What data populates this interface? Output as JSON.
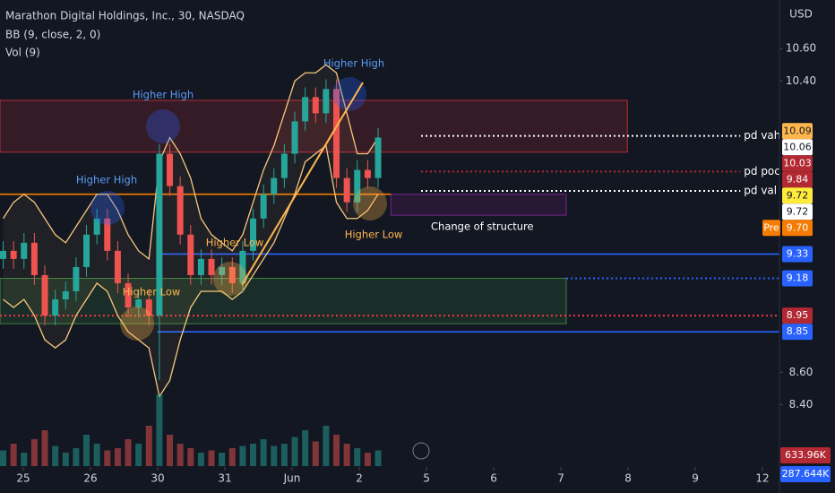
{
  "chart_data": {
    "type": "candlestick",
    "title": "Marathon Digital Holdings, Inc., 30, NASDAQ",
    "indicators": [
      "BB (9, close, 2, 0)",
      "Vol (9)"
    ],
    "currency": "USD",
    "x": [
      -0.3,
      -0.145,
      0.01,
      0.165,
      0.32,
      0.475,
      0.63,
      0.785,
      0.94,
      1.095,
      1.25,
      1.405,
      1.56,
      1.715,
      1.87,
      2.025,
      2.18,
      2.335,
      2.49,
      2.645,
      2.8,
      2.955,
      3.11,
      3.265,
      3.42,
      3.575,
      3.73,
      3.885,
      4.04,
      4.195,
      4.35,
      4.505,
      4.66,
      4.815,
      4.97,
      5.125,
      5.28
    ],
    "open": [
      9.3,
      9.35,
      9.3,
      9.4,
      9.2,
      8.95,
      9.05,
      9.1,
      9.25,
      9.45,
      9.55,
      9.35,
      9.15,
      9.0,
      9.05,
      8.95,
      9.95,
      9.75,
      9.45,
      9.2,
      9.3,
      9.2,
      9.25,
      9.15,
      9.35,
      9.55,
      9.7,
      9.8,
      9.95,
      10.15,
      10.3,
      10.2,
      10.35,
      9.8,
      9.65,
      9.85,
      9.8
    ],
    "high": [
      9.41,
      9.41,
      9.46,
      9.46,
      9.26,
      9.11,
      9.16,
      9.31,
      9.51,
      9.61,
      9.61,
      9.41,
      9.21,
      9.11,
      9.11,
      10.01,
      10.01,
      9.81,
      9.51,
      9.36,
      9.36,
      9.31,
      9.31,
      9.41,
      9.61,
      9.76,
      9.86,
      10.01,
      10.21,
      10.36,
      10.36,
      10.41,
      10.41,
      9.86,
      9.91,
      9.91,
      10.11
    ],
    "low": [
      9.24,
      9.24,
      9.24,
      9.14,
      8.89,
      8.89,
      8.99,
      9.04,
      9.19,
      9.39,
      9.29,
      9.09,
      8.94,
      8.94,
      8.89,
      8.55,
      9.69,
      9.39,
      9.14,
      9.14,
      9.14,
      9.14,
      9.09,
      9.09,
      9.29,
      9.49,
      9.64,
      9.74,
      9.89,
      10.09,
      10.14,
      10.14,
      9.74,
      9.59,
      9.59,
      9.74,
      9.74
    ],
    "close": [
      9.35,
      9.3,
      9.4,
      9.2,
      8.95,
      9.05,
      9.1,
      9.25,
      9.45,
      9.55,
      9.35,
      9.15,
      9.0,
      9.05,
      8.95,
      9.95,
      9.75,
      9.45,
      9.2,
      9.3,
      9.2,
      9.25,
      9.15,
      9.35,
      9.55,
      9.7,
      9.8,
      9.95,
      10.15,
      10.3,
      10.2,
      10.35,
      9.8,
      9.65,
      9.85,
      9.8,
      10.05
    ],
    "bb_upper": [
      9.55,
      9.65,
      9.7,
      9.65,
      9.55,
      9.45,
      9.4,
      9.5,
      9.6,
      9.7,
      9.7,
      9.6,
      9.45,
      9.35,
      9.3,
      9.9,
      10.05,
      9.95,
      9.8,
      9.55,
      9.45,
      9.4,
      9.35,
      9.45,
      9.65,
      9.85,
      10.0,
      10.2,
      10.4,
      10.45,
      10.45,
      10.5,
      10.45,
      10.2,
      9.95,
      9.95,
      10.05
    ],
    "bb_lower": [
      9.05,
      9.0,
      9.05,
      8.95,
      8.8,
      8.75,
      8.8,
      8.95,
      9.05,
      9.15,
      9.1,
      8.95,
      8.85,
      8.8,
      8.75,
      8.45,
      8.55,
      8.8,
      9.0,
      9.1,
      9.1,
      9.1,
      9.05,
      9.1,
      9.2,
      9.3,
      9.4,
      9.55,
      9.7,
      9.9,
      9.95,
      10.0,
      9.65,
      9.55,
      9.55,
      9.6,
      9.7
    ],
    "volume": [
      350,
      500,
      300,
      600,
      800,
      450,
      300,
      400,
      700,
      500,
      350,
      400,
      600,
      500,
      900,
      1600,
      700,
      500,
      400,
      300,
      350,
      300,
      400,
      450,
      500,
      600,
      450,
      500,
      650,
      800,
      550,
      900,
      700,
      500,
      400,
      300,
      350
    ],
    "volume_ylim": [
      0,
      10400
    ],
    "up_color": "#26a69a",
    "down_color": "#ef5350",
    "band_color": "#f7c77e",
    "xlim": [
      -0.347,
      11.253
    ],
    "xticks": [
      {
        "value": 0,
        "label": "25"
      },
      {
        "value": 1,
        "label": "26"
      },
      {
        "value": 2,
        "label": "30"
      },
      {
        "value": 3,
        "label": "31"
      },
      {
        "value": 4,
        "label": "Jun"
      },
      {
        "value": 5,
        "label": "2"
      },
      {
        "value": 6,
        "label": "5"
      },
      {
        "value": 7,
        "label": "6"
      },
      {
        "value": 8,
        "label": "7"
      },
      {
        "value": 9,
        "label": "8"
      },
      {
        "value": 10,
        "label": "9"
      },
      {
        "value": 11,
        "label": "12"
      }
    ],
    "ylim": [
      8.02,
      10.9
    ],
    "yticks": [
      {
        "value": 10.6,
        "label": "10.60"
      },
      {
        "value": 10.4,
        "label": "10.40"
      },
      {
        "value": 8.6,
        "label": "8.60"
      },
      {
        "value": 8.4,
        "label": "8.40"
      }
    ],
    "zones": [
      {
        "top": 10.28,
        "bottom": 9.96,
        "x0": -0.347,
        "x1": 8.99,
        "color": "#f23645"
      },
      {
        "top": 9.18,
        "bottom": 8.9,
        "x0": -0.347,
        "x1": 8.08,
        "color": "#4caf50"
      },
      {
        "top": 9.7,
        "bottom": 9.57,
        "x0": 5.47,
        "x1": 8.08,
        "color": "#9c27b0"
      }
    ],
    "levels": [
      {
        "value": 9.33,
        "x0": 1.99,
        "color": "#2962ff",
        "dash": false
      },
      {
        "value": 8.85,
        "x0": 1.99,
        "color": "#2962ff",
        "dash": false
      },
      {
        "value": 9.18,
        "x0": 8.08,
        "color": "#2962ff",
        "dash": true
      },
      {
        "value": 8.95,
        "x0": -0.347,
        "color": "#f23645",
        "dash": true
      },
      {
        "value": 9.7,
        "x0": -0.347,
        "x1": 5.47,
        "color": "#f57c00",
        "dash": false
      },
      {
        "value": 10.06,
        "x0": 5.92,
        "x1": 10.67,
        "color": "#ffffff",
        "dash": true,
        "label": "pd vah"
      },
      {
        "value": 9.84,
        "x0": 5.92,
        "x1": 10.67,
        "color": "#b22833",
        "dash": true,
        "label": "pd poc"
      },
      {
        "value": 9.72,
        "x0": 5.92,
        "x1": 10.67,
        "color": "#ffffff",
        "dash": true,
        "label": "pd val"
      }
    ],
    "price_tags": [
      {
        "value": 10.09,
        "bg": "#ffb74d",
        "fg": "#131722"
      },
      {
        "value": 10.06,
        "bg": "#ffffff",
        "fg": "#131722"
      },
      {
        "value": 10.03,
        "bg": "#b22833",
        "fg": "#ffffff"
      },
      {
        "value": 9.84,
        "bg": "#b22833",
        "fg": "#ffffff"
      },
      {
        "value": 9.72,
        "bg": "#ffeb3b",
        "fg": "#131722"
      },
      {
        "value": 9.72,
        "bg": "#ffffff",
        "fg": "#131722"
      },
      {
        "value": 9.7,
        "label": "9.70",
        "bg": "#f57c00",
        "fg": "#ffffff",
        "prefix": "Pre"
      },
      {
        "value": 9.33,
        "bg": "#2962ff",
        "fg": "#ffffff"
      },
      {
        "value": 9.18,
        "bg": "#2962ff",
        "fg": "#ffffff"
      },
      {
        "value": 8.95,
        "bg": "#b22833",
        "fg": "#ffffff"
      },
      {
        "value": 8.85,
        "bg": "#2962ff",
        "fg": "#ffffff"
      }
    ],
    "volume_tags": [
      {
        "value": 633.96,
        "label": "633.96K",
        "bg": "#b22833"
      },
      {
        "value": 287.644,
        "label": "287.644K",
        "bg": "#2962ff"
      }
    ],
    "annotations": [
      "Higher High",
      "Higher High",
      "Higher High",
      "Higher Low",
      "Higher Low",
      "Higher Low",
      "Change of structure"
    ]
  }
}
